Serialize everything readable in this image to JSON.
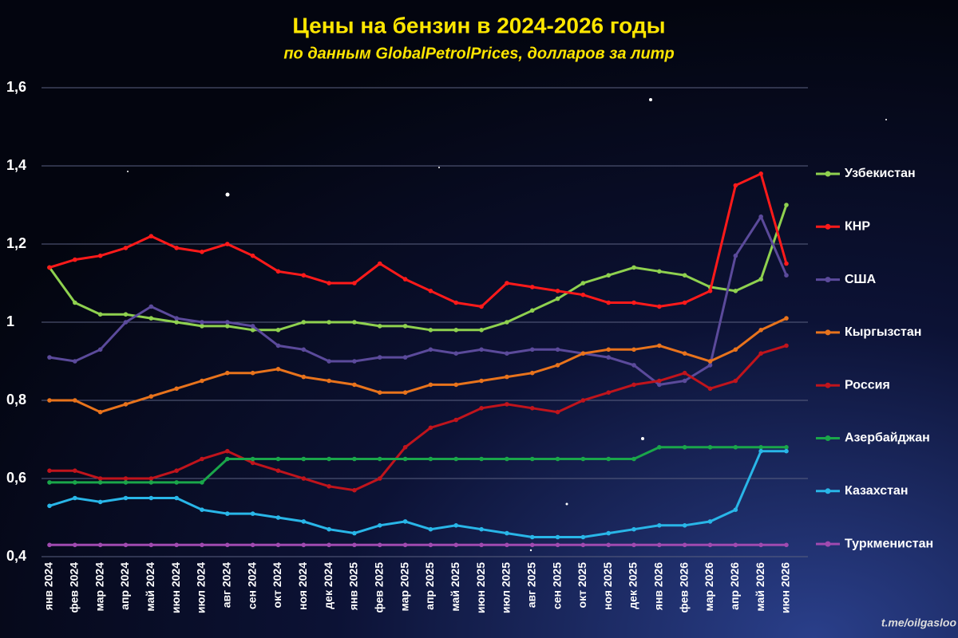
{
  "chart_data": {
    "type": "line",
    "title": "Цены на бензин в 2024-2026 годы",
    "subtitle": "по данным GlobalPetrolPrices, долларов за литр",
    "source": "t.me/oilgasloo",
    "categories": [
      "янв 2024",
      "фев 2024",
      "мар 2024",
      "апр 2024",
      "май 2024",
      "июн 2024",
      "июл 2024",
      "авг 2024",
      "сен 2024",
      "окт 2024",
      "ноя 2024",
      "дек 2024",
      "янв 2025",
      "фев 2025",
      "мар 2025",
      "апр 2025",
      "май 2025",
      "июн 2025",
      "июл 2025",
      "авг 2025",
      "сен 2025",
      "окт 2025",
      "ноя 2025",
      "дек 2025",
      "янв 2026",
      "фев 2026",
      "мар 2026",
      "апр 2026",
      "май 2026",
      "июн 2026"
    ],
    "ylim": [
      0.4,
      1.6
    ],
    "yticks": [
      {
        "value": 0.4,
        "label": "0,4"
      },
      {
        "value": 0.6,
        "label": "0,6"
      },
      {
        "value": 0.8,
        "label": "0,8"
      },
      1,
      {
        "value": 1.2,
        "label": "1,2"
      },
      {
        "value": 1.4,
        "label": "1,4"
      },
      {
        "value": 1.6,
        "label": "1,6"
      }
    ],
    "grid": true,
    "series": [
      {
        "name": "Узбекистан",
        "color": "#8fd14f",
        "values": [
          1.14,
          1.05,
          1.02,
          1.02,
          1.01,
          1.0,
          0.99,
          0.99,
          0.98,
          0.98,
          1.0,
          1.0,
          1.0,
          0.99,
          0.99,
          0.98,
          0.98,
          0.98,
          1.0,
          1.03,
          1.06,
          1.1,
          1.12,
          1.14,
          1.13,
          1.12,
          1.09,
          1.08,
          1.11,
          1.3
        ]
      },
      {
        "name": "КНР",
        "color": "#ff1a1a",
        "values": [
          1.14,
          1.16,
          1.17,
          1.19,
          1.22,
          1.19,
          1.18,
          1.2,
          1.17,
          1.13,
          1.12,
          1.1,
          1.1,
          1.15,
          1.11,
          1.08,
          1.05,
          1.04,
          1.1,
          1.09,
          1.08,
          1.07,
          1.05,
          1.05,
          1.04,
          1.05,
          1.08,
          1.35,
          1.38,
          1.15
        ]
      },
      {
        "name": "США",
        "color": "#5b4a9b",
        "values": [
          0.91,
          0.9,
          0.93,
          1.0,
          1.04,
          1.01,
          1.0,
          1.0,
          0.99,
          0.94,
          0.93,
          0.9,
          0.9,
          0.91,
          0.91,
          0.93,
          0.92,
          0.93,
          0.92,
          0.93,
          0.93,
          0.92,
          0.91,
          0.89,
          0.84,
          0.85,
          0.89,
          1.17,
          1.27,
          1.12
        ]
      },
      {
        "name": "Кыргызстан",
        "color": "#e8731c",
        "values": [
          0.8,
          0.8,
          0.77,
          0.79,
          0.81,
          0.83,
          0.85,
          0.87,
          0.87,
          0.88,
          0.86,
          0.85,
          0.84,
          0.82,
          0.82,
          0.84,
          0.84,
          0.85,
          0.86,
          0.87,
          0.89,
          0.92,
          0.93,
          0.93,
          0.94,
          0.92,
          0.9,
          0.93,
          0.98,
          1.01
        ]
      },
      {
        "name": "Россия",
        "color": "#c0141c",
        "values": [
          0.62,
          0.62,
          0.6,
          0.6,
          0.6,
          0.62,
          0.65,
          0.67,
          0.64,
          0.62,
          0.6,
          0.58,
          0.57,
          0.6,
          0.68,
          0.73,
          0.75,
          0.78,
          0.79,
          0.78,
          0.77,
          0.8,
          0.82,
          0.84,
          0.85,
          0.87,
          0.83,
          0.85,
          0.92,
          0.94
        ]
      },
      {
        "name": "Азербайджан",
        "color": "#1aa64a",
        "values": [
          0.59,
          0.59,
          0.59,
          0.59,
          0.59,
          0.59,
          0.59,
          0.65,
          0.65,
          0.65,
          0.65,
          0.65,
          0.65,
          0.65,
          0.65,
          0.65,
          0.65,
          0.65,
          0.65,
          0.65,
          0.65,
          0.65,
          0.65,
          0.65,
          0.68,
          0.68,
          0.68,
          0.68,
          0.68,
          0.68
        ]
      },
      {
        "name": "Казахстан",
        "color": "#29b6e8",
        "values": [
          0.53,
          0.55,
          0.54,
          0.55,
          0.55,
          0.55,
          0.52,
          0.51,
          0.51,
          0.5,
          0.49,
          0.47,
          0.46,
          0.48,
          0.49,
          0.47,
          0.48,
          0.47,
          0.46,
          0.45,
          0.45,
          0.45,
          0.46,
          0.47,
          0.48,
          0.48,
          0.49,
          0.52,
          0.67,
          0.67
        ]
      },
      {
        "name": "Туркменистан",
        "color": "#a04ab0",
        "values": [
          0.43,
          0.43,
          0.43,
          0.43,
          0.43,
          0.43,
          0.43,
          0.43,
          0.43,
          0.43,
          0.43,
          0.43,
          0.43,
          0.43,
          0.43,
          0.43,
          0.43,
          0.43,
          0.43,
          0.43,
          0.43,
          0.43,
          0.43,
          0.43,
          0.43,
          0.43,
          0.43,
          0.43,
          0.43,
          0.43
        ]
      }
    ]
  }
}
